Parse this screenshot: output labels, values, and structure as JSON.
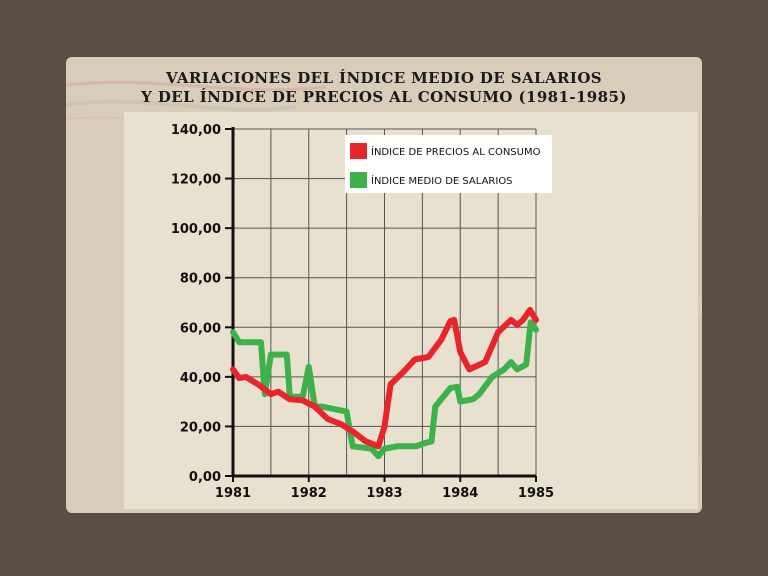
{
  "chart_data": {
    "type": "line",
    "title": [
      "VARIACIONES DEL ÍNDICE MEDIO DE SALARIOS",
      "Y DEL ÍNDICE DE PRECIOS AL CONSUMO  (1981-1985)"
    ],
    "xlabel": "",
    "ylabel": "",
    "xlim": [
      1981,
      1985
    ],
    "ylim": [
      0,
      140
    ],
    "y_ticks": [
      "0,00",
      "20,00",
      "40,00",
      "60,00",
      "80,00",
      "100,00",
      "120,00",
      "140,00"
    ],
    "y_tick_values": [
      0,
      20,
      40,
      60,
      80,
      100,
      120,
      140
    ],
    "x_ticks": [
      "1981",
      "1982",
      "1983",
      "1984",
      "1985"
    ],
    "x_tick_values": [
      1981,
      1982,
      1983,
      1984,
      1985
    ],
    "grid": true,
    "legend_position": "top-right",
    "series": [
      {
        "name": "ÍNDICE DE PRECIOS AL CONSUMO",
        "color": "#e8252b",
        "x": [
          1981.0,
          1981.08,
          1981.17,
          1981.33,
          1981.5,
          1981.6,
          1981.75,
          1981.92,
          1982.08,
          1982.25,
          1982.42,
          1982.58,
          1982.75,
          1982.92,
          1983.0,
          1983.08,
          1983.25,
          1983.4,
          1983.58,
          1983.75,
          1983.87,
          1983.92,
          1984.0,
          1984.12,
          1984.33,
          1984.5,
          1984.67,
          1984.75,
          1984.83,
          1984.92,
          1985.0
        ],
        "values": [
          43,
          39.5,
          40,
          37,
          33,
          34,
          31,
          30.5,
          28,
          23,
          21,
          18,
          14,
          12,
          20,
          37,
          42,
          47,
          48,
          55,
          62.5,
          63,
          50,
          43,
          46,
          58,
          63,
          61,
          63,
          67,
          63
        ]
      },
      {
        "name": "ÍNDICE MEDIO DE SALARIOS",
        "color": "#3db14a",
        "x": [
          1981.0,
          1981.08,
          1981.2,
          1981.37,
          1981.42,
          1981.5,
          1981.58,
          1981.71,
          1981.75,
          1981.92,
          1982.0,
          1982.08,
          1982.17,
          1982.5,
          1982.58,
          1982.83,
          1982.92,
          1983.0,
          1983.17,
          1983.42,
          1983.5,
          1983.62,
          1983.67,
          1983.75,
          1983.87,
          1983.96,
          1984.0,
          1984.17,
          1984.25,
          1984.42,
          1984.58,
          1984.67,
          1984.75,
          1984.87,
          1984.93,
          1985.0
        ],
        "values": [
          58,
          54,
          54,
          54,
          33,
          49,
          49,
          49,
          32,
          32,
          44,
          28,
          28,
          26,
          12,
          11,
          8,
          11,
          12,
          12,
          13,
          14,
          28,
          31,
          35.5,
          36,
          30,
          31,
          33,
          40,
          43,
          46,
          43,
          45,
          62,
          59
        ]
      }
    ]
  }
}
